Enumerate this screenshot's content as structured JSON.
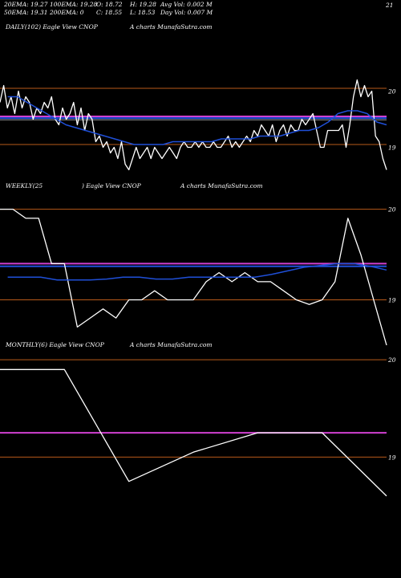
{
  "header": {
    "row1": [
      "20EMA: 19.27",
      "100EMA: 19.28",
      "O: 18.72",
      "H: 19.28",
      "Avg Vol: 0.002  M"
    ],
    "row2": [
      "50EMA: 19.31",
      "200EMA: 0",
      "C: 18.55",
      "L: 18.53",
      "Day Vol: 0.007 M"
    ],
    "corner": "21"
  },
  "colors": {
    "background": "#000000",
    "price": "#ffffff",
    "ema_blue": "#1f4fd8",
    "magenta": "#d040d0",
    "level_line": "#b85a1a",
    "ema_gray": "#9a9a9a"
  },
  "chart_data": [
    {
      "type": "line",
      "title": "DAILY(102) Eagle  View  CNOP",
      "watermark": "A charts MunafaSutra.com",
      "ytick_labels": [
        "20",
        "19"
      ],
      "ylim": [
        18.45,
        21.05
      ],
      "levels": [
        20.05,
        19.05,
        19.55,
        19.52,
        19.49
      ],
      "series": [
        {
          "color": "#ffffff",
          "values": [
            19.8,
            20.1,
            19.7,
            19.9,
            19.6,
            20.0,
            19.7,
            19.9,
            19.8,
            19.5,
            19.7,
            19.6,
            19.8,
            19.7,
            19.9,
            19.5,
            19.4,
            19.7,
            19.5,
            19.6,
            19.8,
            19.4,
            19.7,
            19.3,
            19.6,
            19.5,
            19.1,
            19.2,
            19.0,
            19.1,
            18.9,
            19.0,
            18.8,
            19.1,
            18.7,
            18.6,
            18.8,
            19.0,
            18.8,
            18.9,
            19.0,
            18.8,
            19.0,
            18.9,
            18.8,
            18.9,
            19.0,
            18.9,
            18.8,
            19.0,
            19.1,
            19.0,
            19.0,
            19.1,
            19.0,
            19.1,
            19.0,
            19.0,
            19.1,
            19.0,
            19.0,
            19.1,
            19.2,
            19.0,
            19.1,
            19.0,
            19.1,
            19.2,
            19.1,
            19.3,
            19.2,
            19.4,
            19.3,
            19.2,
            19.4,
            19.1,
            19.3,
            19.4,
            19.2,
            19.4,
            19.3,
            19.3,
            19.5,
            19.4,
            19.5,
            19.6,
            19.3,
            19.0,
            19.0,
            19.3,
            19.3,
            19.3,
            19.3,
            19.4,
            19.0,
            19.4,
            19.9,
            20.2,
            19.9,
            20.1,
            19.9,
            20.0,
            19.2,
            19.1,
            18.8,
            18.6
          ]
        },
        {
          "color": "#1f4fd8",
          "values": [
            19.9,
            19.9,
            19.8,
            19.7,
            19.6,
            19.5,
            19.4,
            19.35,
            19.3,
            19.25,
            19.2,
            19.15,
            19.1,
            19.05,
            19.05,
            19.05,
            19.05,
            19.1,
            19.1,
            19.1,
            19.1,
            19.1,
            19.15,
            19.15,
            19.15,
            19.15,
            19.2,
            19.2,
            19.2,
            19.25,
            19.3,
            19.3,
            19.35,
            19.45,
            19.6,
            19.65,
            19.65,
            19.6,
            19.45,
            19.4
          ]
        }
      ]
    },
    {
      "type": "line",
      "title": "WEEKLY(25",
      "subtitle": ") Eagle  View  CNOP",
      "watermark": "A charts MunafaSutra.com",
      "ytick_labels": [
        "20",
        "19"
      ],
      "ylim": [
        18.5,
        20.2
      ],
      "levels": [
        20.0,
        19.0,
        19.4,
        19.37
      ],
      "series": [
        {
          "color": "#ffffff",
          "values": [
            20.0,
            20.0,
            19.9,
            19.9,
            19.4,
            19.4,
            18.7,
            18.8,
            18.9,
            18.8,
            19.0,
            19.0,
            19.1,
            19.0,
            19.0,
            19.0,
            19.2,
            19.3,
            19.2,
            19.3,
            19.2,
            19.2,
            19.1,
            19.0,
            18.95,
            19.0,
            19.2,
            19.9,
            19.5,
            19.0,
            18.5
          ]
        },
        {
          "color": "#1f4fd8",
          "values": [
            19.25,
            19.25,
            19.25,
            19.22,
            19.22,
            19.22,
            19.23,
            19.25,
            19.25,
            19.23,
            19.23,
            19.25,
            19.25,
            19.25,
            19.25,
            19.25,
            19.28,
            19.32,
            19.36,
            19.38,
            19.4,
            19.4,
            19.37,
            19.33
          ]
        }
      ]
    },
    {
      "type": "line",
      "title": "MONTHLY(6) Eagle  View  CNOP",
      "watermark": "A charts MunafaSutra.com",
      "ytick_labels": [
        "20",
        "19"
      ],
      "ylim": [
        18.5,
        20.1
      ],
      "levels": [
        20.0,
        19.0,
        19.25
      ],
      "series": [
        {
          "color": "#ffffff",
          "values": [
            19.9,
            19.9,
            18.75,
            19.05,
            19.25,
            19.25,
            18.6
          ]
        }
      ]
    }
  ]
}
